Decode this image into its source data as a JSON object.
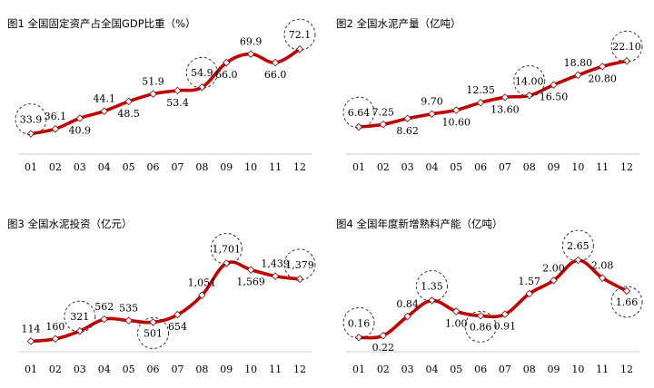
{
  "chart_data": [
    {
      "type": "line",
      "title": "图1 全国固定资产占全国GDP比重（%）",
      "categories": [
        "01",
        "02",
        "03",
        "04",
        "05",
        "06",
        "07",
        "08",
        "09",
        "10",
        "11",
        "12"
      ],
      "values": [
        33.9,
        36.1,
        40.9,
        44.1,
        48.5,
        51.9,
        53.4,
        54.9,
        66.0,
        69.9,
        66.0,
        72.1
      ],
      "labels": [
        "33.9",
        "36.1",
        "40.9",
        "44.1",
        "48.5",
        "51.9",
        "53.4",
        "54.9",
        "66.0",
        "69.9",
        "66.0",
        "72.1"
      ],
      "highlighted": [
        0,
        7,
        11
      ],
      "ylim": [
        28,
        82
      ],
      "line_color": "#c00000",
      "grid": false
    },
    {
      "type": "line",
      "title": "图2 全国水泥产量（亿吨）",
      "categories": [
        "01",
        "02",
        "03",
        "04",
        "05",
        "06",
        "07",
        "08",
        "09",
        "10",
        "11",
        "12"
      ],
      "values": [
        6.64,
        7.25,
        8.62,
        9.7,
        10.6,
        12.35,
        13.6,
        14.0,
        16.5,
        18.8,
        20.8,
        22.1
      ],
      "labels": [
        "6.64",
        "7.25",
        "8.62",
        "9.70",
        "10.60",
        "12.35",
        "13.60",
        "14.00",
        "16.50",
        "18.80",
        "20.80",
        "22.10"
      ],
      "highlighted": [
        0,
        7,
        11
      ],
      "ylim": [
        2,
        30
      ],
      "line_color": "#c00000",
      "grid": false
    },
    {
      "type": "line",
      "title": "图3 全国水泥投资（亿元）",
      "categories": [
        "01",
        "02",
        "03",
        "04",
        "05",
        "06",
        "07",
        "08",
        "09",
        "10",
        "11",
        "12"
      ],
      "values": [
        114,
        160,
        321,
        562,
        535,
        501,
        654,
        1051,
        1701,
        1569,
        1439,
        1379
      ],
      "labels": [
        "114",
        "160",
        "321",
        "562",
        "535",
        "501",
        "654",
        "1,051",
        "1,701",
        "1,569",
        "1,439",
        "1,379"
      ],
      "highlighted": [
        2,
        5,
        8,
        11
      ],
      "ylim": [
        -100,
        2300
      ],
      "line_color": "#c00000",
      "grid": false
    },
    {
      "type": "line",
      "title": "图4 全国年度新增熟料产能（亿吨）",
      "categories": [
        "01",
        "02",
        "03",
        "04",
        "05",
        "06",
        "07",
        "08",
        "09",
        "10",
        "11",
        "12"
      ],
      "values": [
        0.16,
        0.22,
        0.84,
        1.35,
        1.0,
        0.86,
        0.91,
        1.57,
        2.0,
        2.65,
        2.08,
        1.66
      ],
      "labels": [
        "0.16",
        "0.22",
        "0.84",
        "1.35",
        "1.00",
        "0.86",
        "0.91",
        "1.57",
        "2.00",
        "2.65",
        "2.08",
        "1.66"
      ],
      "highlighted": [
        0,
        3,
        5,
        9,
        11
      ],
      "ylim": [
        -0.3,
        3.5
      ],
      "line_color": "#c00000",
      "grid": false
    }
  ]
}
